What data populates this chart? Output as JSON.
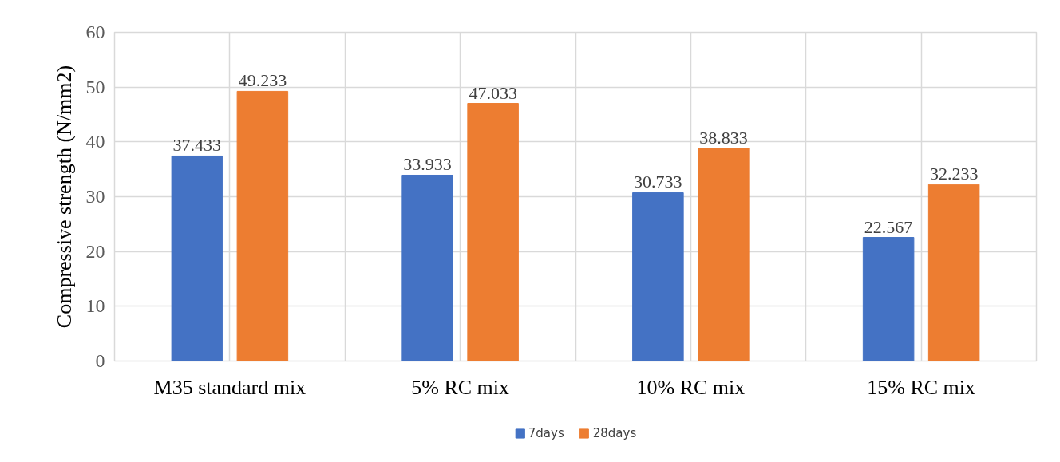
{
  "chart_data": {
    "type": "bar",
    "ylabel": "Compressive strength (N/mm2)",
    "categories": [
      "M35 standard mix",
      "5% RC mix",
      "10% RC mix",
      "15% RC mix"
    ],
    "series": [
      {
        "name": "7days",
        "color": "#4472c4",
        "values": [
          37.433,
          33.933,
          30.733,
          22.567
        ]
      },
      {
        "name": "28days",
        "color": "#ed7d31",
        "values": [
          49.233,
          47.033,
          38.833,
          32.233
        ]
      }
    ],
    "ylim": [
      0,
      60
    ],
    "yticks": [
      0,
      10,
      20,
      30,
      40,
      50,
      60
    ],
    "grid": true,
    "legend": "bottom",
    "data_labels": true
  }
}
